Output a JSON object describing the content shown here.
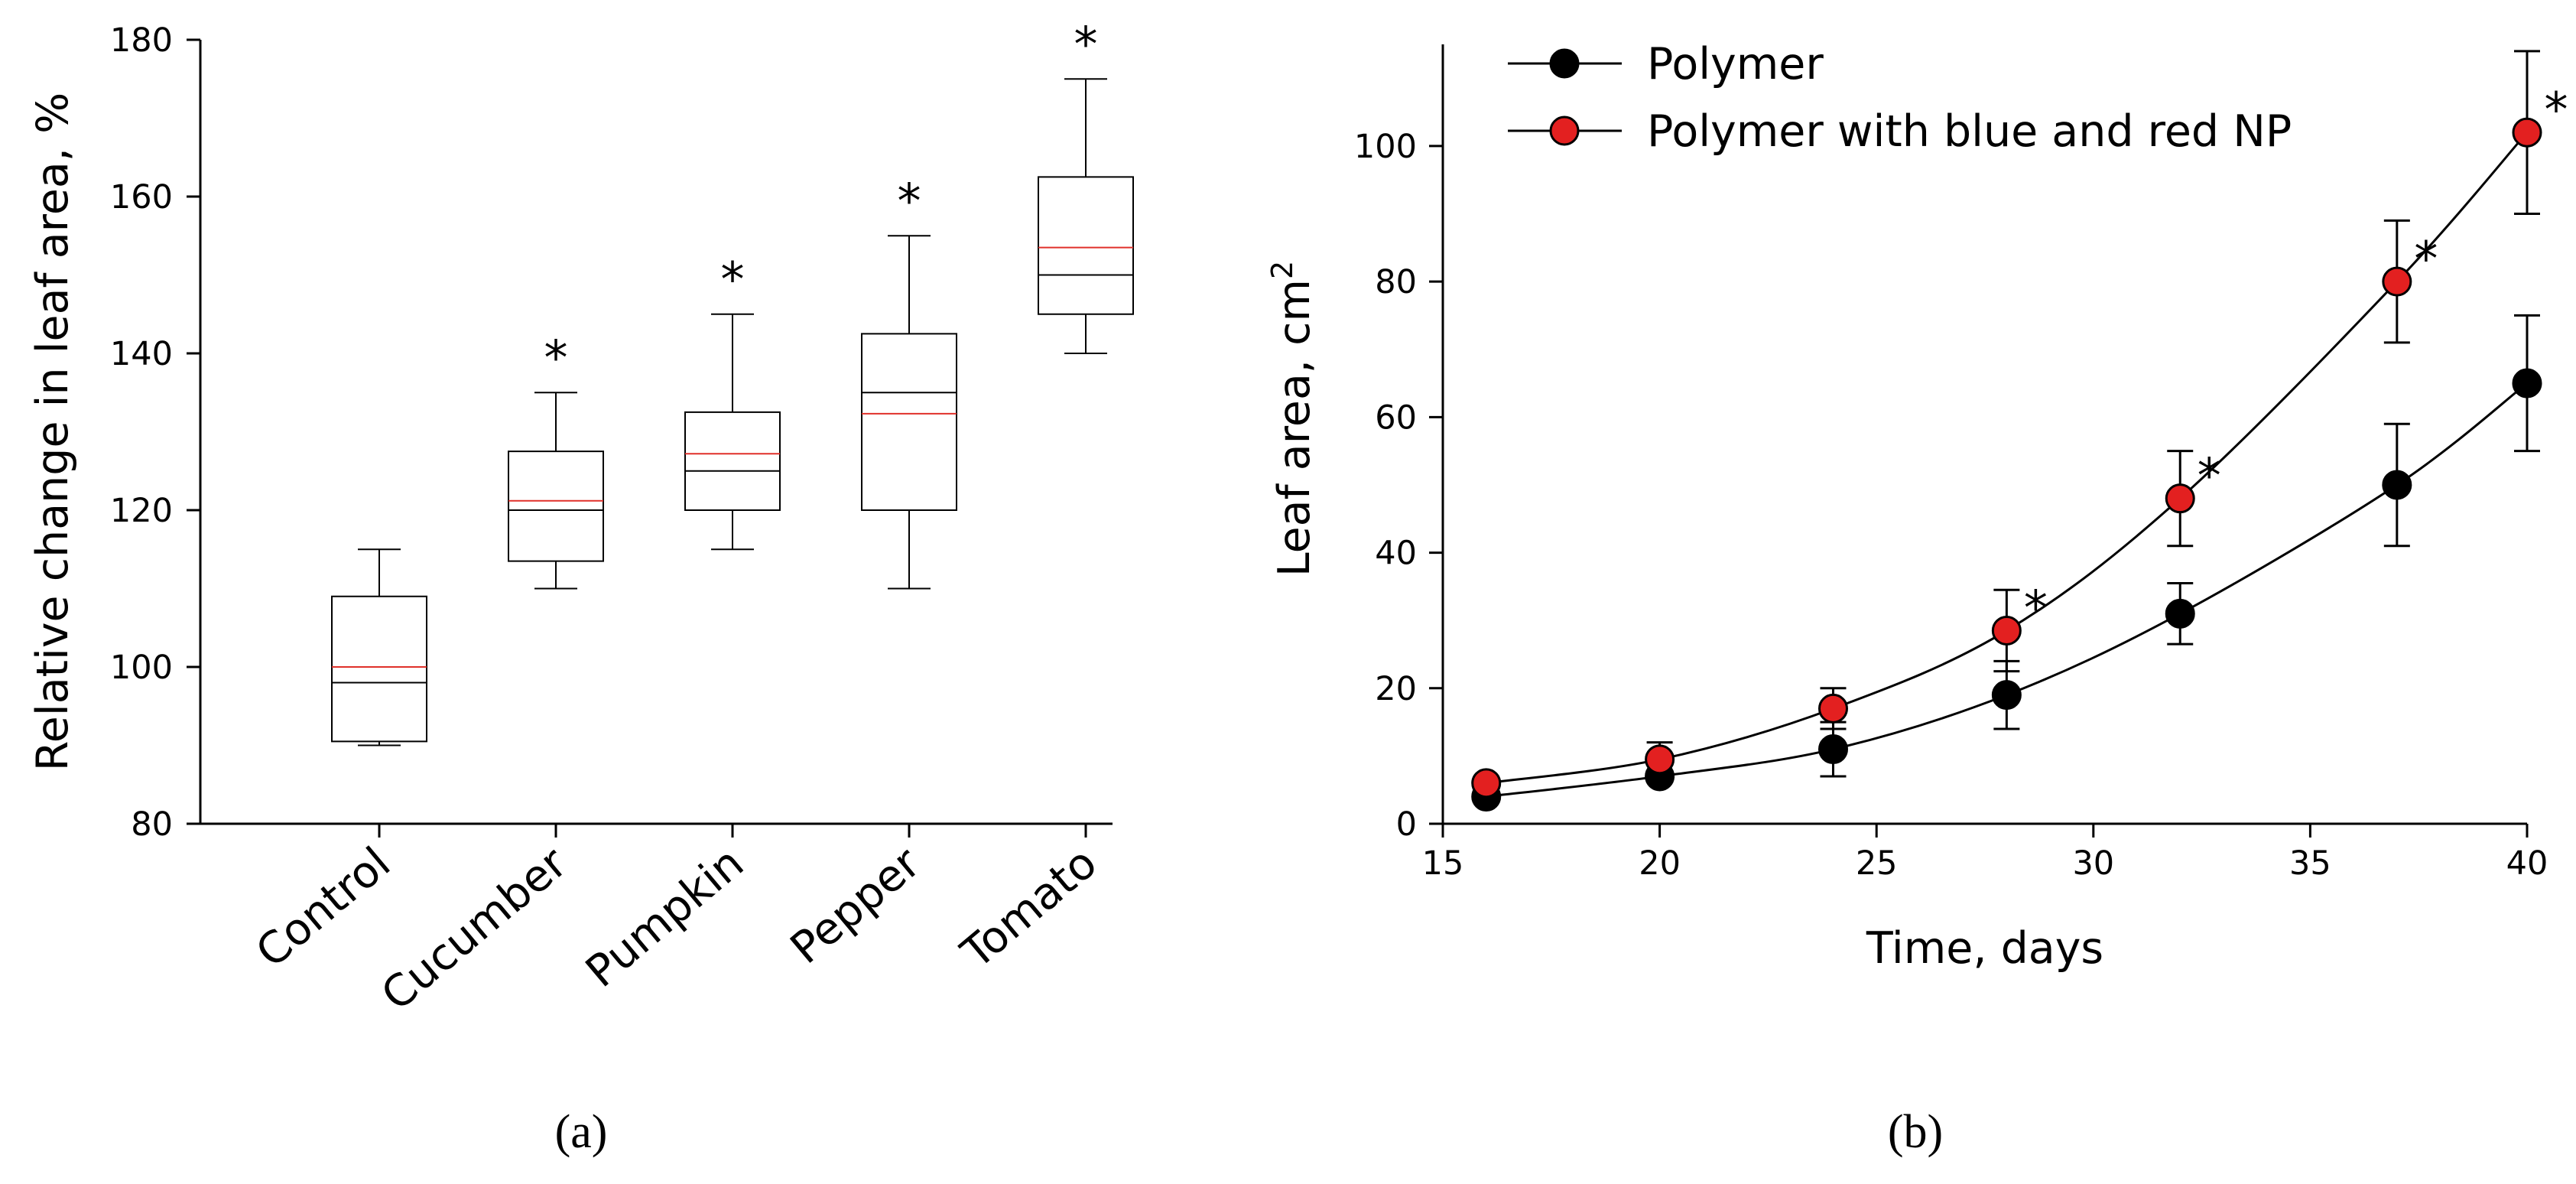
{
  "panel_labels": {
    "a": "(a)",
    "b": "(b)"
  },
  "colors": {
    "axis": "#000000",
    "mean": "#e0302a",
    "red_fill": "#e32020",
    "black_fill": "#000000"
  },
  "chart_data": [
    {
      "id": "a",
      "type": "box",
      "ylabel": "Relative change in leaf area, %",
      "xlabel": "",
      "ylim": [
        80,
        180
      ],
      "yticks": [
        80,
        100,
        120,
        140,
        160,
        180
      ],
      "categories": [
        "Control",
        "Cucumber",
        "Pumpkin",
        "Pepper",
        "Tomato"
      ],
      "boxes": [
        {
          "category": "Control",
          "whisker_low": 90,
          "q1": 90.5,
          "median": 98,
          "mean": 100,
          "q3": 109,
          "whisker_high": 115,
          "significant": false
        },
        {
          "category": "Cucumber",
          "whisker_low": 110,
          "q1": 113.5,
          "median": 120,
          "mean": 121.2,
          "q3": 127.5,
          "whisker_high": 135,
          "significant": true
        },
        {
          "category": "Pumpkin",
          "whisker_low": 115,
          "q1": 120,
          "median": 125,
          "mean": 127.2,
          "q3": 132.5,
          "whisker_high": 145,
          "significant": true
        },
        {
          "category": "Pepper",
          "whisker_low": 110,
          "q1": 120,
          "median": 135,
          "mean": 132.3,
          "q3": 142.5,
          "whisker_high": 155,
          "significant": true
        },
        {
          "category": "Tomato",
          "whisker_low": 140,
          "q1": 145,
          "median": 150,
          "mean": 153.5,
          "q3": 162.5,
          "whisker_high": 175,
          "significant": true
        }
      ],
      "significance_marker": "*"
    },
    {
      "id": "b",
      "type": "line",
      "xlabel": "Time, days",
      "ylabel": "Leaf area, cm",
      "ylabel_sup": "2",
      "xlim": [
        15,
        40
      ],
      "ylim": [
        0,
        115
      ],
      "xticks": [
        15,
        20,
        25,
        30,
        35,
        40
      ],
      "yticks": [
        0,
        20,
        40,
        60,
        80,
        100
      ],
      "legend_position": "top-left",
      "significance_marker": "*",
      "series": [
        {
          "name": "Polymer",
          "color": "#000000",
          "x": [
            16,
            20,
            24,
            28,
            32,
            37,
            40
          ],
          "y": [
            4,
            7,
            11,
            19,
            31,
            50,
            65
          ],
          "err": [
            0.5,
            0.5,
            4,
            5,
            4.5,
            9,
            10
          ],
          "significant": [
            false,
            false,
            false,
            false,
            false,
            false,
            false
          ]
        },
        {
          "name": "Polymer with blue and red NP",
          "color": "#e32020",
          "x": [
            16,
            20,
            24,
            28,
            32,
            37,
            40
          ],
          "y": [
            6,
            9.5,
            17,
            28.5,
            48,
            80,
            102
          ],
          "err": [
            0.8,
            2.5,
            3,
            6,
            7,
            9,
            12
          ],
          "significant": [
            false,
            false,
            false,
            true,
            true,
            true,
            true
          ]
        }
      ]
    }
  ]
}
